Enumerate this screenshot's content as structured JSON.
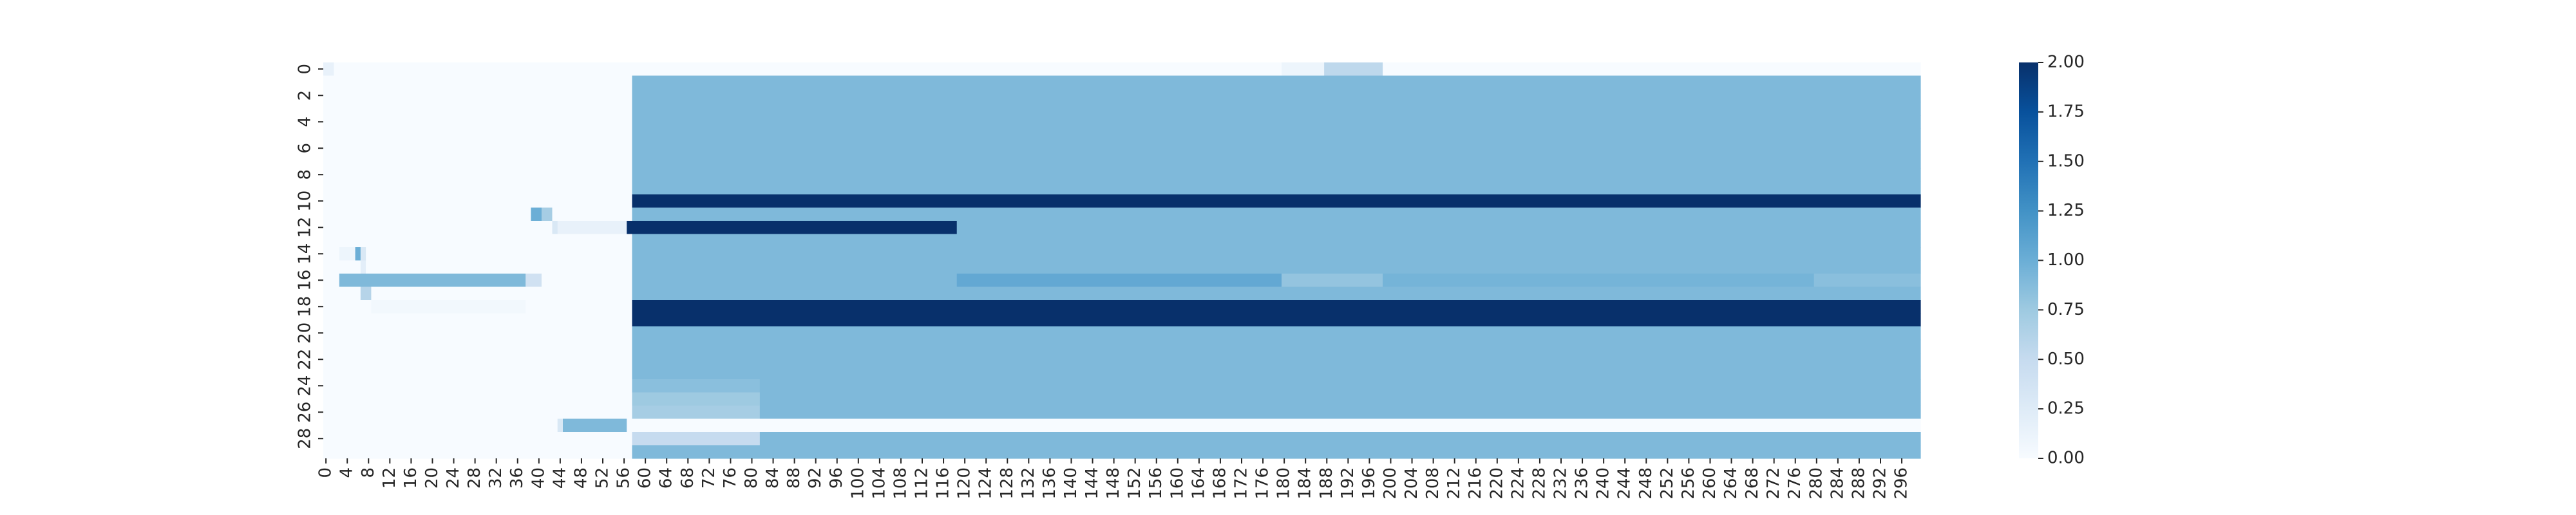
{
  "chart_data": {
    "type": "heatmap",
    "title": "",
    "xlabel": "",
    "ylabel": "",
    "n_cols": 300,
    "n_rows": 30,
    "x_tick_step": 4,
    "y_tick_step": 2,
    "vmin": 0.0,
    "vmax": 2.0,
    "colormap": "Blues",
    "colorbar_ticks": [
      "0.00",
      "0.25",
      "0.50",
      "0.75",
      "1.00",
      "1.25",
      "1.50",
      "1.75",
      "2.00"
    ],
    "default_value": 0.0,
    "regions": [
      {
        "rows": [
          1,
          29
        ],
        "cols": [
          58,
          299
        ],
        "value": 0.9
      },
      {
        "rows": [
          10,
          10
        ],
        "cols": [
          58,
          299
        ],
        "value": 2.0
      },
      {
        "rows": [
          12,
          12
        ],
        "cols": [
          57,
          118
        ],
        "value": 2.0
      },
      {
        "rows": [
          12,
          12
        ],
        "cols": [
          44,
          56
        ],
        "value": 0.15
      },
      {
        "rows": [
          11,
          11
        ],
        "cols": [
          39,
          40
        ],
        "value": 1.0
      },
      {
        "rows": [
          11,
          11
        ],
        "cols": [
          41,
          42
        ],
        "value": 0.7
      },
      {
        "rows": [
          12,
          12
        ],
        "cols": [
          43,
          43
        ],
        "value": 0.3
      },
      {
        "rows": [
          16,
          16
        ],
        "cols": [
          119,
          179
        ],
        "value": 1.05
      },
      {
        "rows": [
          16,
          16
        ],
        "cols": [
          199,
          279
        ],
        "value": 0.95
      },
      {
        "rows": [
          16,
          16
        ],
        "cols": [
          280,
          299
        ],
        "value": 0.85
      },
      {
        "rows": [
          16,
          16
        ],
        "cols": [
          180,
          198
        ],
        "value": 0.8
      },
      {
        "rows": [
          18,
          19
        ],
        "cols": [
          58,
          299
        ],
        "value": 2.0
      },
      {
        "rows": [
          24,
          24
        ],
        "cols": [
          58,
          81
        ],
        "value": 0.85
      },
      {
        "rows": [
          25,
          25
        ],
        "cols": [
          58,
          81
        ],
        "value": 0.75
      },
      {
        "rows": [
          26,
          26
        ],
        "cols": [
          58,
          81
        ],
        "value": 0.7
      },
      {
        "rows": [
          27,
          27
        ],
        "cols": [
          58,
          299
        ],
        "value": 0.0
      },
      {
        "rows": [
          28,
          28
        ],
        "cols": [
          58,
          81
        ],
        "value": 0.5
      },
      {
        "rows": [
          28,
          28
        ],
        "cols": [
          82,
          299
        ],
        "value": 0.9
      },
      {
        "rows": [
          27,
          27
        ],
        "cols": [
          45,
          56
        ],
        "value": 0.9
      },
      {
        "rows": [
          27,
          27
        ],
        "cols": [
          44,
          44
        ],
        "value": 0.3
      },
      {
        "rows": [
          14,
          14
        ],
        "cols": [
          3,
          5
        ],
        "value": 0.1
      },
      {
        "rows": [
          14,
          14
        ],
        "cols": [
          6,
          6
        ],
        "value": 1.0
      },
      {
        "rows": [
          14,
          14
        ],
        "cols": [
          7,
          7
        ],
        "value": 0.3
      },
      {
        "rows": [
          15,
          15
        ],
        "cols": [
          7,
          7
        ],
        "value": 0.2
      },
      {
        "rows": [
          16,
          16
        ],
        "cols": [
          3,
          37
        ],
        "value": 0.9
      },
      {
        "rows": [
          16,
          16
        ],
        "cols": [
          38,
          40
        ],
        "value": 0.4
      },
      {
        "rows": [
          17,
          17
        ],
        "cols": [
          7,
          8
        ],
        "value": 0.6
      },
      {
        "rows": [
          18,
          18
        ],
        "cols": [
          9,
          37
        ],
        "value": 0.05
      },
      {
        "rows": [
          0,
          0
        ],
        "cols": [
          0,
          1
        ],
        "value": 0.15
      },
      {
        "rows": [
          0,
          0
        ],
        "cols": [
          180,
          187
        ],
        "value": 0.1
      },
      {
        "rows": [
          0,
          0
        ],
        "cols": [
          188,
          198
        ],
        "value": 0.55
      }
    ]
  }
}
